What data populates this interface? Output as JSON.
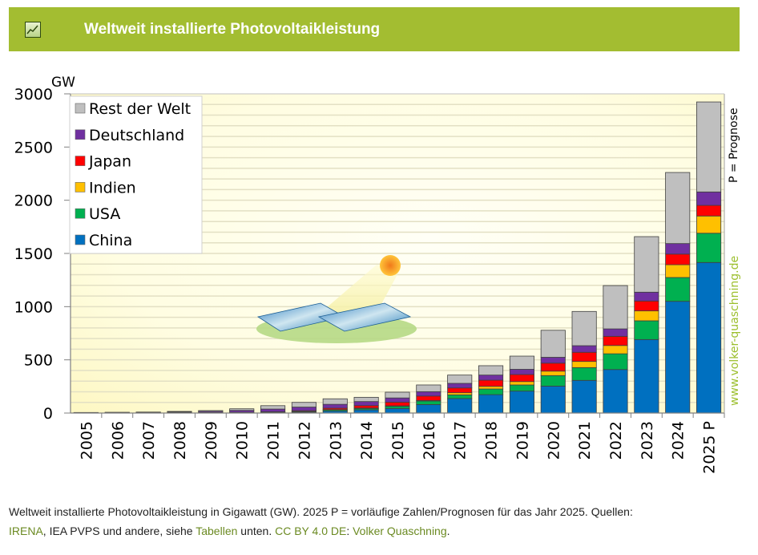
{
  "header": {
    "title": "Weltweit installierte Photovoltaikleistung",
    "icon": "line-chart-icon"
  },
  "chart_data": {
    "type": "bar",
    "stacked": true,
    "title": "Weltweit installierte Photovoltaikleistung",
    "ylabel": "GW",
    "xlabel": "",
    "ylim": [
      0,
      3000
    ],
    "yticks": [
      0,
      500,
      1000,
      1500,
      2000,
      2500,
      3000
    ],
    "minor_gridline_step": 100,
    "grid": true,
    "legend_position": "top-left",
    "categories": [
      "2005",
      "2006",
      "2007",
      "2008",
      "2009",
      "2010",
      "2011",
      "2012",
      "2013",
      "2014",
      "2015",
      "2016",
      "2017",
      "2018",
      "2019",
      "2020",
      "2021",
      "2022",
      "2023",
      "2024",
      "2025 P"
    ],
    "series": [
      {
        "name": "China",
        "color": "#0070c0",
        "values": [
          0.1,
          0.1,
          0.1,
          0.1,
          0.3,
          0.8,
          3,
          7,
          18,
          30,
          43,
          80,
          136,
          173,
          206,
          253,
          307,
          409,
          691,
          1050,
          1415
        ]
      },
      {
        "name": "USA",
        "color": "#00b050",
        "values": [
          0.5,
          0.6,
          0.8,
          1.2,
          1.6,
          2.5,
          4,
          7,
          12,
          13,
          20,
          33,
          35,
          53,
          58,
          99,
          120,
          148,
          176,
          224,
          275
        ]
      },
      {
        "name": "Indien",
        "color": "#ffc000",
        "values": [
          0,
          0,
          0,
          0,
          0,
          0.1,
          0.5,
          1,
          2,
          4,
          5,
          5,
          20,
          25,
          32,
          42,
          58,
          78,
          93,
          120,
          162
        ]
      },
      {
        "name": "Japan",
        "color": "#ff0000",
        "values": [
          1.4,
          1.7,
          1.9,
          2.1,
          2.6,
          3.6,
          4.9,
          7,
          14,
          23,
          34,
          42,
          45,
          58,
          66,
          75,
          86,
          86,
          93,
          100,
          100
        ]
      },
      {
        "name": "Deutschland",
        "color": "#7030a0",
        "values": [
          2,
          2.9,
          4.2,
          6,
          10.6,
          18,
          25,
          34,
          36,
          38,
          40,
          41,
          43,
          48,
          49,
          55,
          62,
          70,
          83,
          99,
          126
        ]
      },
      {
        "name": "Rest der Welt",
        "color": "#bfbfbf",
        "values": [
          1.3,
          1.7,
          2.2,
          6,
          8,
          15,
          32,
          44,
          52,
          40,
          54,
          63,
          78,
          88,
          124,
          254,
          322,
          407,
          522,
          668,
          846
        ]
      }
    ],
    "annotations": [
      "P = Prognose",
      "www.volker-quaschning.de"
    ]
  },
  "side_text": {
    "prognose": "P = Prognose",
    "watermark": "www.volker-quaschning.de"
  },
  "caption": {
    "line1": "Weltweit installierte Photovoltaikleistung in Gigawatt (GW). 2025 P = vorläufige Zahlen/Prognosen für das Jahr 2025. Quellen:",
    "link_irena": "IRENA",
    "text2": ", IEA PVPS und andere, siehe ",
    "link_tabellen": "Tabellen",
    "text3": " unten. ",
    "link_license": "CC BY 4.0 DE",
    "text4": ": ",
    "link_author": "Volker Quaschning",
    "text5": "."
  }
}
